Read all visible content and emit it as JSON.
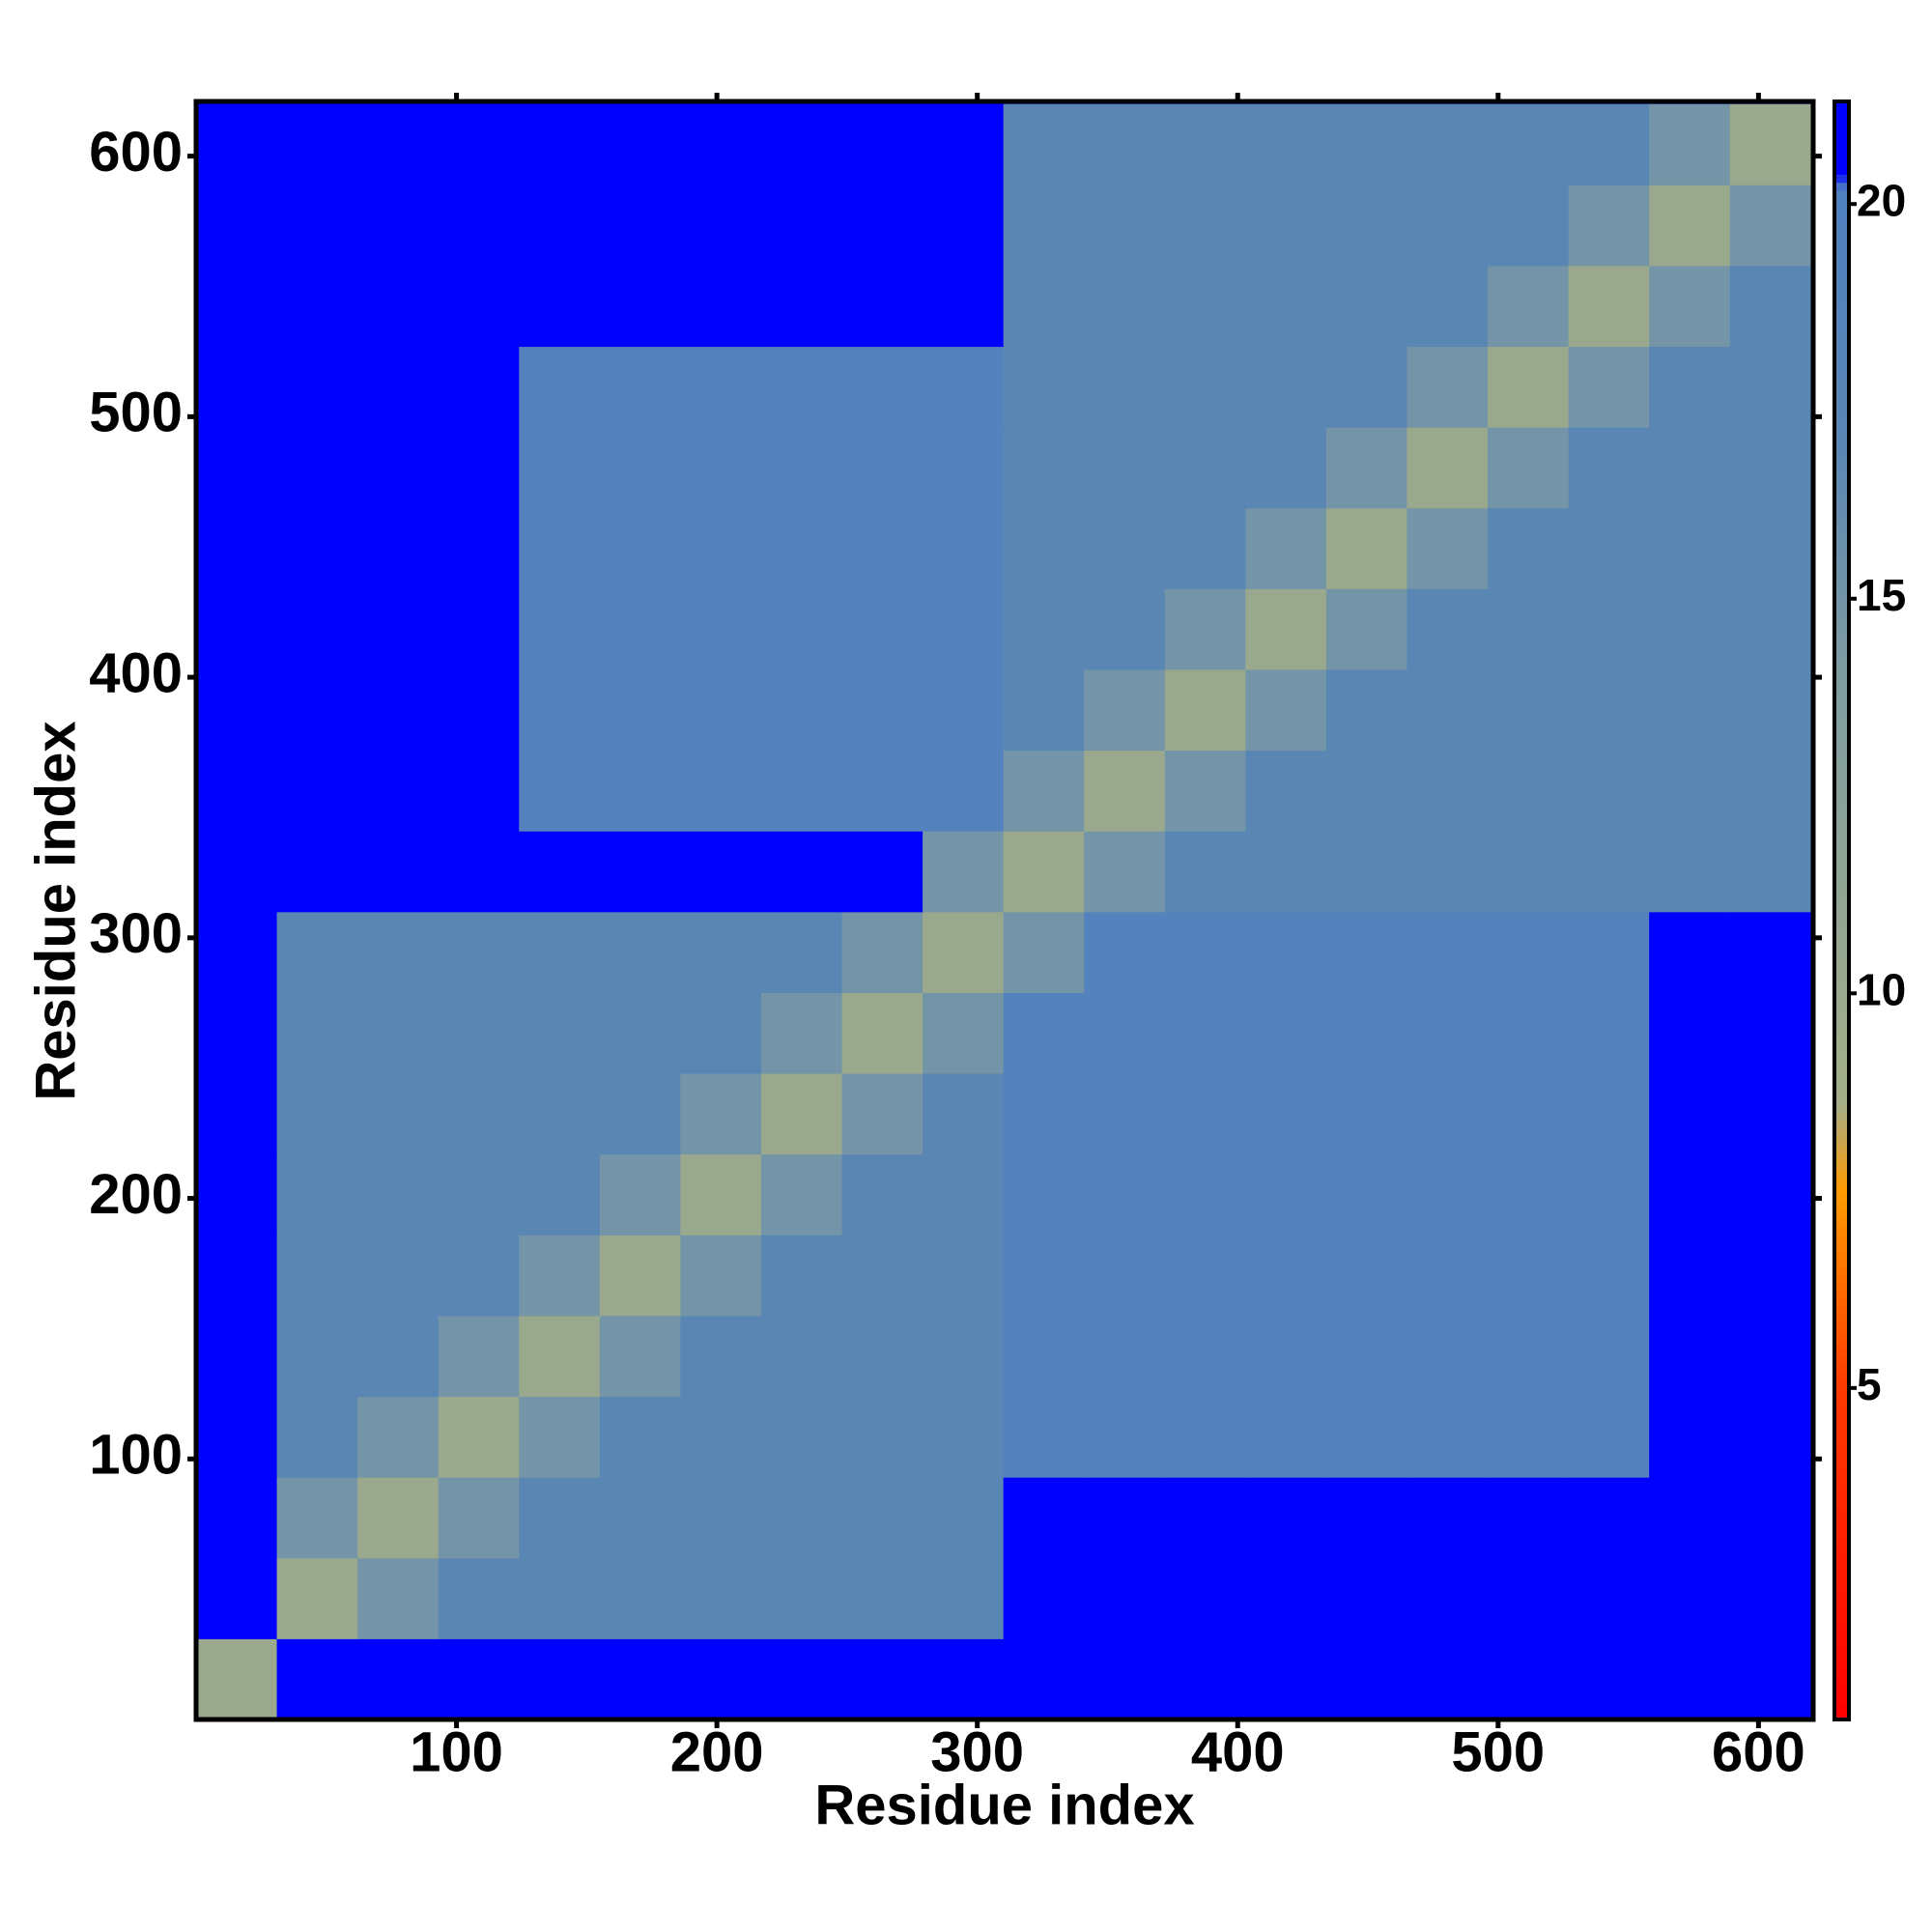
{
  "chart_data": {
    "type": "heatmap",
    "x_label": "Residue index",
    "y_label": "Residue index",
    "x": [
      0,
      31,
      62,
      93,
      124,
      155,
      186,
      217,
      248,
      279,
      310,
      341,
      372,
      403,
      434,
      465,
      496,
      527,
      558,
      589,
      620
    ],
    "y": [
      0,
      31,
      62,
      93,
      124,
      155,
      186,
      217,
      248,
      279,
      310,
      341,
      372,
      403,
      434,
      465,
      496,
      527,
      558,
      589,
      620
    ],
    "z": [
      [
        10,
        21,
        21,
        21,
        21,
        21,
        21,
        21,
        21,
        21,
        21,
        21,
        21,
        21,
        21,
        21,
        21,
        21,
        21,
        21
      ],
      [
        21,
        10,
        15,
        17,
        17,
        17,
        17,
        17,
        17,
        17,
        21,
        21,
        21,
        21,
        21,
        21,
        21,
        21,
        21,
        21
      ],
      [
        21,
        15,
        10,
        15,
        17,
        17,
        17,
        17,
        17,
        17,
        21,
        21,
        21,
        21,
        21,
        21,
        21,
        21,
        21,
        21
      ],
      [
        21,
        17,
        15,
        10,
        15,
        17,
        17,
        17,
        17,
        17,
        19,
        19,
        19,
        19,
        19,
        19,
        19,
        19,
        21,
        21
      ],
      [
        21,
        17,
        17,
        15,
        10,
        15,
        17,
        17,
        17,
        17,
        19,
        19,
        19,
        19,
        19,
        19,
        19,
        19,
        21,
        21
      ],
      [
        21,
        17,
        17,
        17,
        15,
        10,
        15,
        17,
        17,
        17,
        19,
        19,
        19,
        19,
        19,
        19,
        19,
        19,
        21,
        21
      ],
      [
        21,
        17,
        17,
        17,
        17,
        15,
        10,
        15,
        17,
        17,
        19,
        19,
        19,
        19,
        19,
        19,
        19,
        19,
        21,
        21
      ],
      [
        21,
        17,
        17,
        17,
        17,
        17,
        15,
        10,
        15,
        17,
        19,
        19,
        19,
        19,
        19,
        19,
        19,
        19,
        21,
        21
      ],
      [
        21,
        17,
        17,
        17,
        17,
        17,
        17,
        15,
        10,
        15,
        19,
        19,
        19,
        19,
        19,
        19,
        19,
        19,
        21,
        21
      ],
      [
        21,
        17,
        17,
        17,
        17,
        17,
        17,
        17,
        15,
        10,
        15,
        19,
        19,
        19,
        19,
        19,
        19,
        19,
        21,
        21
      ],
      [
        21,
        21,
        21,
        21,
        21,
        21,
        21,
        21,
        21,
        15,
        10,
        15,
        17,
        17,
        17,
        17,
        17,
        17,
        17,
        17
      ],
      [
        21,
        21,
        21,
        21,
        19,
        19,
        19,
        19,
        19,
        19,
        15,
        10,
        15,
        17,
        17,
        17,
        17,
        17,
        17,
        17
      ],
      [
        21,
        21,
        21,
        21,
        19,
        19,
        19,
        19,
        19,
        19,
        17,
        15,
        10,
        15,
        17,
        17,
        17,
        17,
        17,
        17
      ],
      [
        21,
        21,
        21,
        21,
        19,
        19,
        19,
        19,
        19,
        19,
        17,
        17,
        15,
        10,
        15,
        17,
        17,
        17,
        17,
        17
      ],
      [
        21,
        21,
        21,
        21,
        19,
        19,
        19,
        19,
        19,
        19,
        17,
        17,
        17,
        15,
        10,
        15,
        17,
        17,
        17,
        17
      ],
      [
        21,
        21,
        21,
        21,
        19,
        19,
        19,
        19,
        19,
        19,
        17,
        17,
        17,
        17,
        15,
        10,
        15,
        17,
        17,
        17
      ],
      [
        21,
        21,
        21,
        21,
        19,
        19,
        19,
        19,
        19,
        19,
        17,
        17,
        17,
        17,
        17,
        15,
        10,
        15,
        17,
        17
      ],
      [
        21,
        21,
        21,
        21,
        21,
        21,
        21,
        21,
        21,
        21,
        17,
        17,
        17,
        17,
        17,
        17,
        15,
        10,
        15,
        17
      ],
      [
        21,
        21,
        21,
        21,
        21,
        21,
        21,
        21,
        21,
        21,
        17,
        17,
        17,
        17,
        17,
        17,
        17,
        15,
        10,
        15
      ],
      [
        21,
        21,
        21,
        21,
        21,
        21,
        21,
        21,
        21,
        21,
        17,
        17,
        17,
        17,
        17,
        17,
        17,
        17,
        15,
        10
      ]
    ],
    "xlim": [
      0,
      621
    ],
    "ylim": [
      0,
      621
    ],
    "xticks": [
      100,
      200,
      300,
      400,
      500,
      600
    ],
    "yticks": [
      100,
      200,
      300,
      400,
      500,
      600
    ],
    "zlim": [
      0.8,
      21.3
    ],
    "zticks": [
      5,
      10,
      15,
      20
    ],
    "colorscale": [
      [
        0.8,
        "#ff0000"
      ],
      [
        5,
        "#ff3a00"
      ],
      [
        7.5,
        "#ff9a00"
      ],
      [
        8.6,
        "#a4ae88"
      ],
      [
        14,
        "#7f9ca0"
      ],
      [
        17,
        "#5a86b4"
      ],
      [
        20.2,
        "#5080c0"
      ],
      [
        20.4,
        "#0000ff"
      ],
      [
        21.3,
        "#0000ff"
      ]
    ]
  }
}
